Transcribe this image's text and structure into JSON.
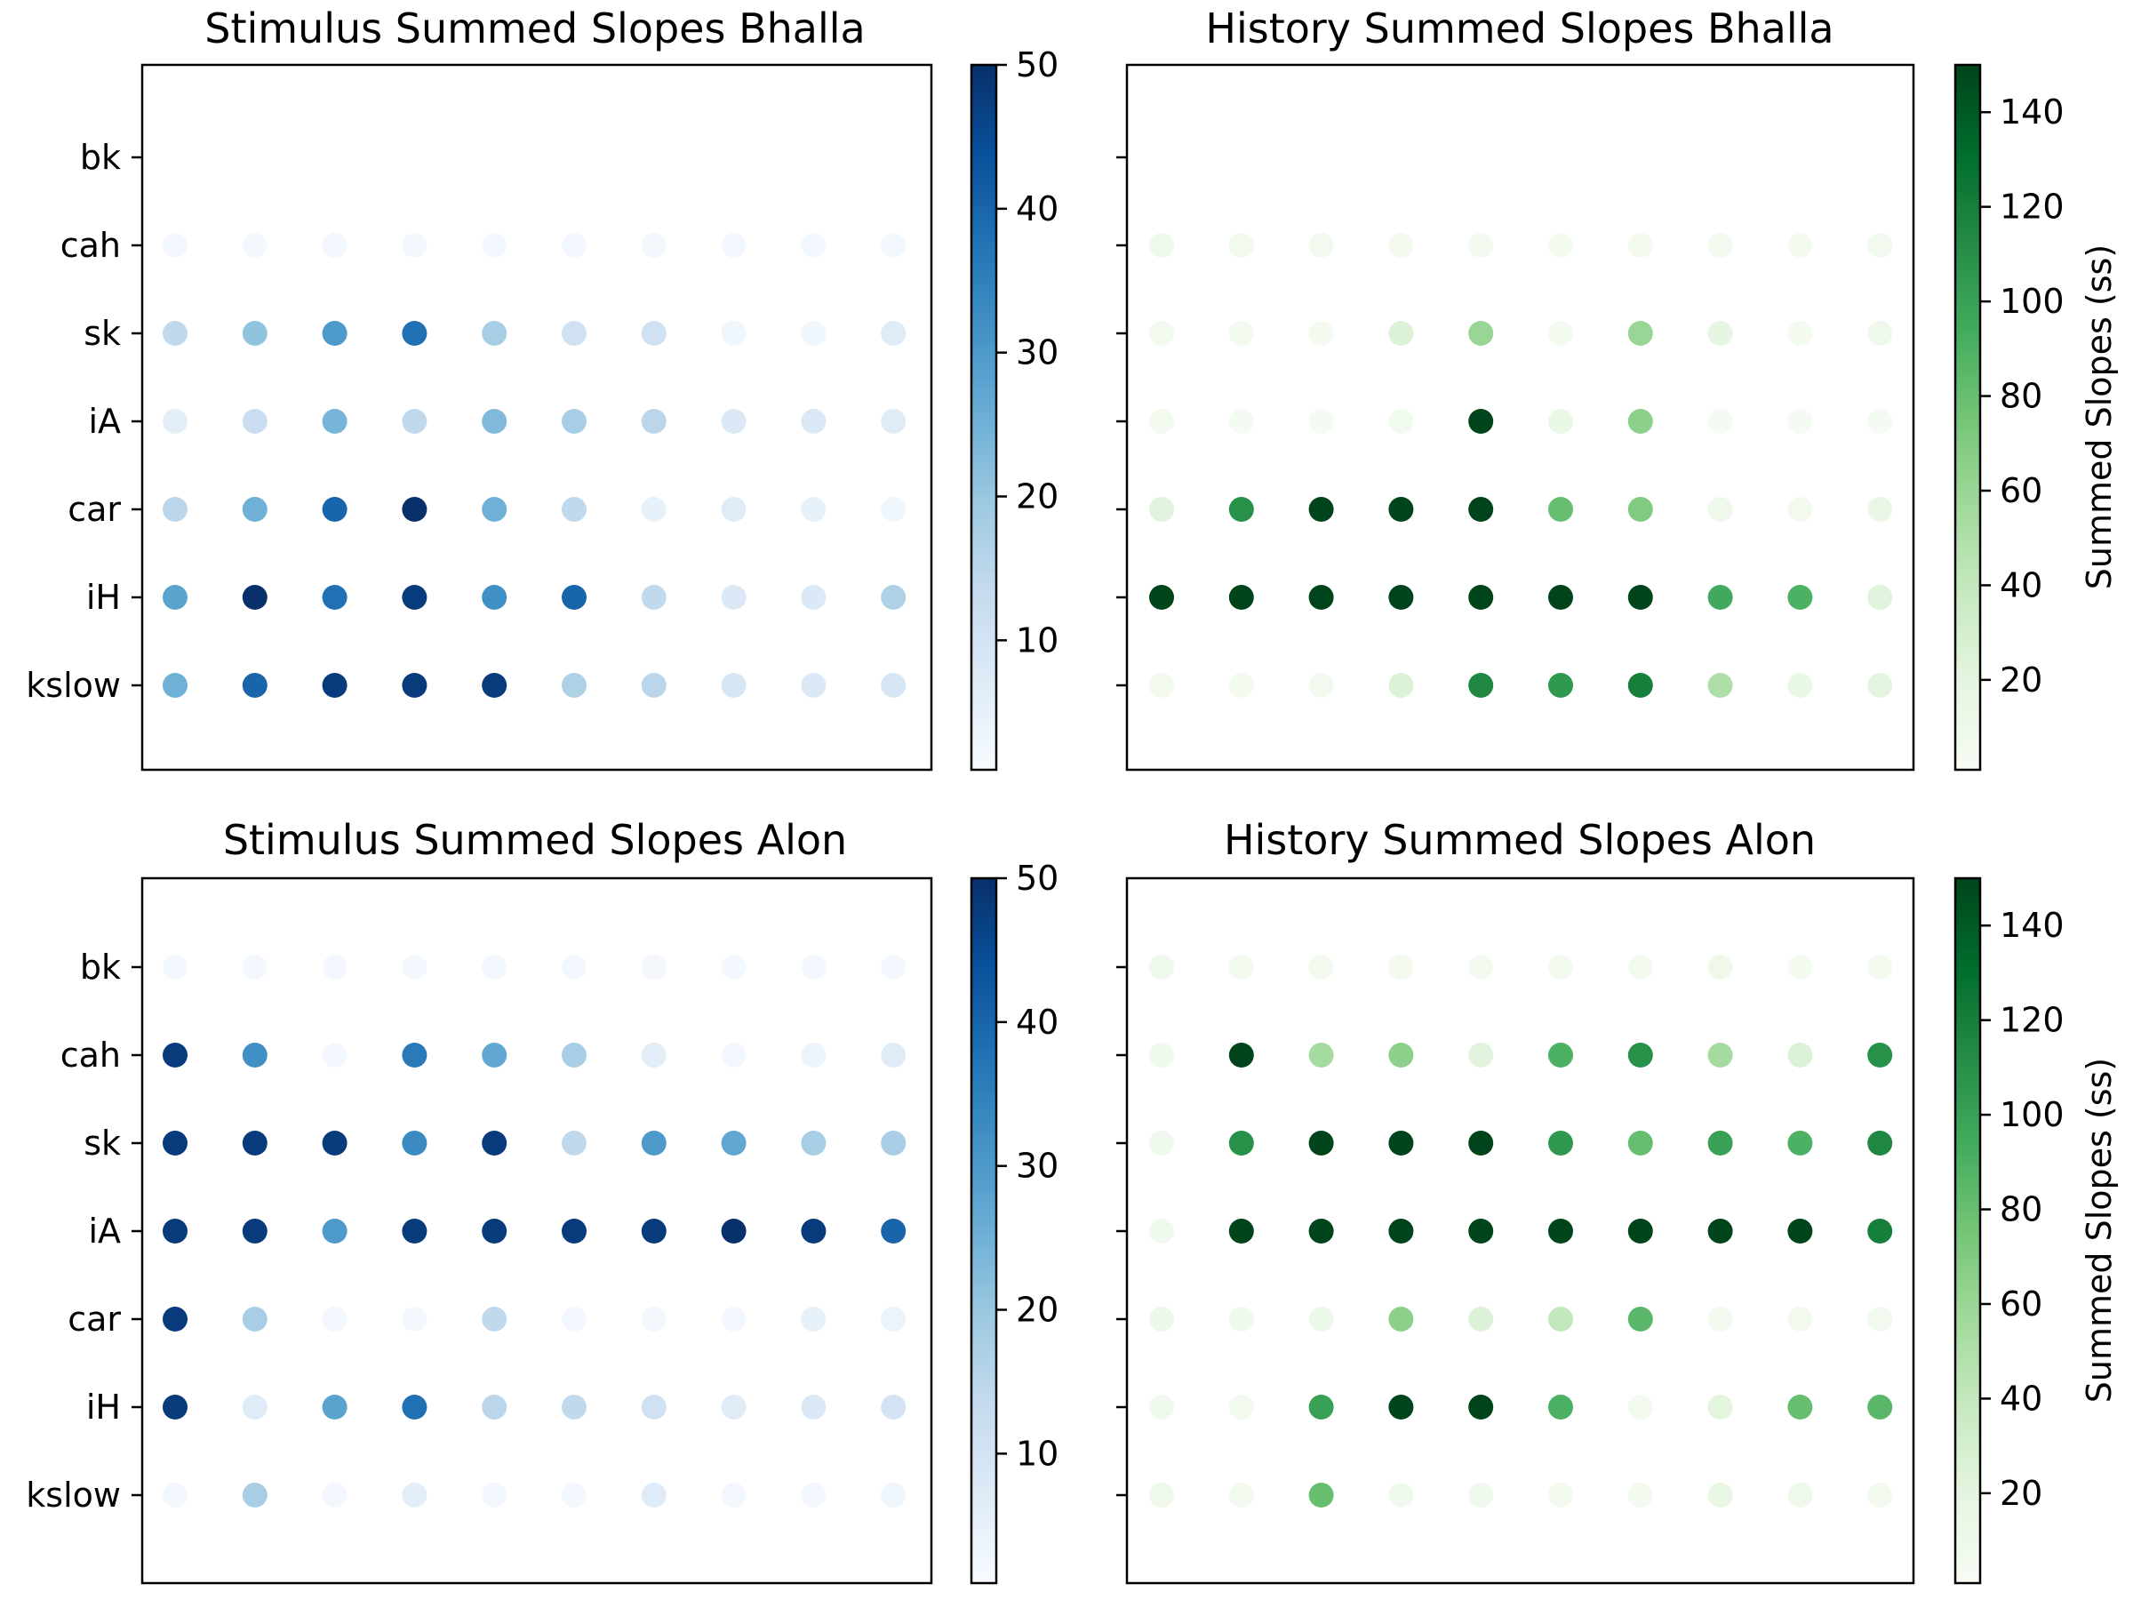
{
  "chart_data": [
    {
      "type": "scatter",
      "title": "Stimulus Summed Slopes Bhalla",
      "y_categories": [
        "bk",
        "cah",
        "sk",
        "iA",
        "car",
        "iH",
        "kslow"
      ],
      "x_count": 10,
      "colormap": "blues",
      "clim": [
        1,
        50
      ],
      "colorbar_ticks": [
        10,
        20,
        30,
        40,
        50
      ],
      "colorbar_label": "",
      "show_y_labels": true,
      "grid": false,
      "values": [
        [
          null,
          null,
          null,
          null,
          null,
          null,
          null,
          null,
          null,
          null
        ],
        [
          2,
          2,
          2,
          2,
          2,
          2,
          2,
          2,
          2,
          2
        ],
        [
          14,
          21,
          30,
          38,
          18,
          11,
          11,
          3,
          3,
          7
        ],
        [
          6,
          12,
          24,
          14,
          23,
          18,
          15,
          8,
          8,
          7
        ],
        [
          15,
          25,
          40,
          50,
          25,
          14,
          5,
          7,
          5,
          3
        ],
        [
          28,
          50,
          38,
          48,
          32,
          40,
          14,
          8,
          8,
          17
        ],
        [
          25,
          40,
          48,
          48,
          48,
          17,
          15,
          9,
          8,
          9
        ]
      ]
    },
    {
      "type": "scatter",
      "title": "History Summed Slopes Bhalla",
      "y_categories": [
        "bk",
        "cah",
        "sk",
        "iA",
        "car",
        "iH",
        "kslow"
      ],
      "x_count": 10,
      "colormap": "greens",
      "clim": [
        1,
        150
      ],
      "colorbar_ticks": [
        20,
        40,
        60,
        80,
        100,
        120,
        140
      ],
      "colorbar_label": "Summed Slopes (ss)",
      "show_y_labels": false,
      "grid": false,
      "values": [
        [
          null,
          null,
          null,
          null,
          null,
          null,
          null,
          null,
          null,
          null
        ],
        [
          8,
          6,
          6,
          5,
          5,
          5,
          5,
          5,
          5,
          6
        ],
        [
          6,
          5,
          5,
          25,
          60,
          5,
          60,
          18,
          5,
          10
        ],
        [
          5,
          4,
          4,
          7,
          150,
          15,
          65,
          4,
          4,
          4
        ],
        [
          22,
          110,
          150,
          150,
          150,
          80,
          70,
          10,
          6,
          14
        ],
        [
          150,
          150,
          150,
          150,
          150,
          150,
          150,
          95,
          90,
          22
        ],
        [
          6,
          5,
          6,
          25,
          115,
          105,
          120,
          50,
          15,
          20
        ]
      ]
    },
    {
      "type": "scatter",
      "title": "Stimulus Summed Slopes Alon",
      "y_categories": [
        "bk",
        "cah",
        "sk",
        "iA",
        "car",
        "iH",
        "kslow"
      ],
      "x_count": 10,
      "colormap": "blues",
      "clim": [
        1,
        50
      ],
      "colorbar_ticks": [
        10,
        20,
        30,
        40,
        50
      ],
      "colorbar_label": "",
      "show_y_labels": true,
      "grid": false,
      "values": [
        [
          2,
          2,
          2,
          2,
          2,
          2,
          2,
          2,
          2,
          2
        ],
        [
          48,
          32,
          2,
          36,
          27,
          18,
          6,
          2,
          4,
          7
        ],
        [
          48,
          48,
          48,
          33,
          48,
          14,
          30,
          27,
          18,
          18
        ],
        [
          48,
          48,
          30,
          48,
          48,
          48,
          48,
          50,
          48,
          40
        ],
        [
          48,
          18,
          2,
          2,
          14,
          2,
          2,
          2,
          5,
          4
        ],
        [
          48,
          7,
          28,
          38,
          15,
          14,
          11,
          7,
          8,
          10
        ],
        [
          2,
          18,
          2,
          6,
          2,
          2,
          7,
          2,
          2,
          3
        ]
      ]
    },
    {
      "type": "scatter",
      "title": "History Summed Slopes Alon",
      "y_categories": [
        "bk",
        "cah",
        "sk",
        "iA",
        "car",
        "iH",
        "kslow"
      ],
      "x_count": 10,
      "colormap": "greens",
      "clim": [
        1,
        150
      ],
      "colorbar_ticks": [
        20,
        40,
        60,
        80,
        100,
        120,
        140
      ],
      "colorbar_label": "Summed Slopes (ss)",
      "show_y_labels": false,
      "grid": false,
      "values": [
        [
          10,
          6,
          6,
          5,
          5,
          5,
          5,
          10,
          5,
          5
        ],
        [
          8,
          150,
          55,
          65,
          22,
          90,
          110,
          55,
          25,
          110
        ],
        [
          8,
          110,
          150,
          150,
          150,
          105,
          80,
          100,
          90,
          115
        ],
        [
          8,
          150,
          150,
          150,
          150,
          150,
          150,
          150,
          150,
          120
        ],
        [
          12,
          8,
          12,
          65,
          25,
          40,
          85,
          5,
          6,
          6
        ],
        [
          8,
          6,
          100,
          150,
          150,
          90,
          5,
          20,
          80,
          85
        ],
        [
          10,
          6,
          80,
          8,
          8,
          5,
          5,
          15,
          10,
          6
        ]
      ]
    }
  ]
}
